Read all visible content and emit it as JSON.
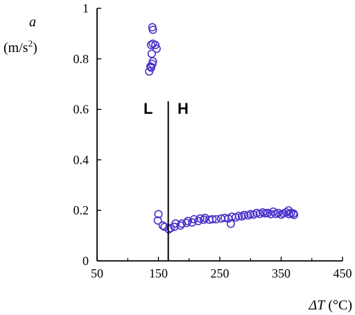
{
  "chart_data": {
    "type": "scatter",
    "ylabel_symbol": "a",
    "ylabel_unit_base": "(m/s",
    "ylabel_unit_exp": "2",
    "ylabel_unit_close": ")",
    "xlabel_symbol": "ΔT",
    "xlabel_unit": "(°C)",
    "xlim": [
      50,
      450
    ],
    "ylim": [
      0,
      1
    ],
    "xticks": [
      50,
      150,
      250,
      350,
      450
    ],
    "xtick_labels": [
      "50",
      "150",
      "250",
      "350",
      "450"
    ],
    "yticks": [
      0,
      0.2,
      0.4,
      0.6,
      0.8,
      1
    ],
    "ytick_labels": [
      "0",
      "0.2",
      "0.4",
      "0.6",
      "0.8",
      "1"
    ],
    "marker_color": "#4a2fc8",
    "vline": {
      "x": 166
    },
    "annotations": [
      "L",
      "H"
    ],
    "series": [
      {
        "values": [
          [
            140,
            0.925
          ],
          [
            141,
            0.915
          ],
          [
            141,
            0.86
          ],
          [
            138,
            0.855
          ],
          [
            145,
            0.855
          ],
          [
            147,
            0.84
          ],
          [
            139,
            0.82
          ],
          [
            141,
            0.79
          ],
          [
            140,
            0.78
          ],
          [
            137,
            0.77
          ],
          [
            138,
            0.765
          ],
          [
            135,
            0.75
          ],
          [
            150,
            0.185
          ],
          [
            149,
            0.16
          ],
          [
            157,
            0.14
          ],
          [
            160,
            0.135
          ],
          [
            167,
            0.125
          ],
          [
            170,
            0.13
          ],
          [
            176,
            0.135
          ],
          [
            178,
            0.148
          ],
          [
            186,
            0.14
          ],
          [
            188,
            0.148
          ],
          [
            196,
            0.15
          ],
          [
            198,
            0.158
          ],
          [
            205,
            0.152
          ],
          [
            208,
            0.165
          ],
          [
            215,
            0.158
          ],
          [
            218,
            0.168
          ],
          [
            224,
            0.163
          ],
          [
            226,
            0.17
          ],
          [
            233,
            0.163
          ],
          [
            238,
            0.165
          ],
          [
            244,
            0.165
          ],
          [
            252,
            0.168
          ],
          [
            258,
            0.17
          ],
          [
            264,
            0.168
          ],
          [
            268,
            0.147
          ],
          [
            270,
            0.175
          ],
          [
            276,
            0.172
          ],
          [
            281,
            0.178
          ],
          [
            286,
            0.176
          ],
          [
            290,
            0.182
          ],
          [
            296,
            0.18
          ],
          [
            300,
            0.185
          ],
          [
            305,
            0.183
          ],
          [
            310,
            0.19
          ],
          [
            315,
            0.186
          ],
          [
            320,
            0.192
          ],
          [
            324,
            0.188
          ],
          [
            328,
            0.19
          ],
          [
            333,
            0.185
          ],
          [
            337,
            0.195
          ],
          [
            341,
            0.186
          ],
          [
            345,
            0.19
          ],
          [
            350,
            0.183
          ],
          [
            354,
            0.188
          ],
          [
            358,
            0.192
          ],
          [
            362,
            0.2
          ],
          [
            363,
            0.185
          ],
          [
            366,
            0.19
          ],
          [
            370,
            0.188
          ],
          [
            371,
            0.182
          ]
        ]
      }
    ]
  }
}
